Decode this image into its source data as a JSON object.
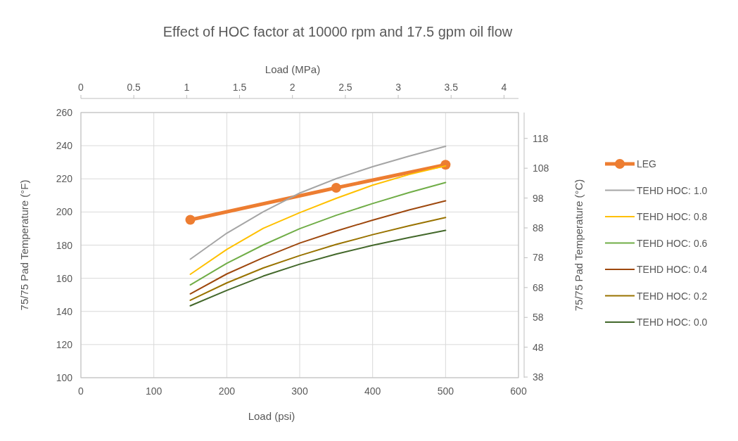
{
  "chart_data": {
    "type": "line",
    "title": "Effect of HOC factor at 10000 rpm and 17.5 gpm oil flow",
    "xlabel": "Load (psi)",
    "x2label": "Load (MPa)",
    "ylabel": "75/75 Pad Temperature (°F)",
    "y2label": "75/75 Pad Temperature (°C)",
    "xlim": [
      0,
      600
    ],
    "xticks": [
      0,
      100,
      200,
      300,
      400,
      500,
      600
    ],
    "x2lim": [
      0,
      4.137
    ],
    "x2ticks": [
      0,
      0.5,
      1,
      1.5,
      2,
      2.5,
      3,
      3.5,
      4
    ],
    "ylim": [
      100,
      260
    ],
    "yticks": [
      100,
      120,
      140,
      160,
      180,
      200,
      220,
      240,
      260
    ],
    "y2lim": [
      37.78,
      126.67
    ],
    "y2ticks": [
      38,
      48,
      58,
      68,
      78,
      88,
      98,
      108,
      118
    ],
    "grid": true,
    "legend": "right",
    "series": [
      {
        "name": "LEG",
        "color": "#ed7d31",
        "marker": "circle",
        "x": [
          150,
          350,
          500
        ],
        "values": [
          195.3,
          214.6,
          228.5
        ]
      },
      {
        "name": "TEHD HOC: 1.0",
        "color": "#a5a5a5",
        "marker": "none",
        "x": [
          150,
          200,
          250,
          300,
          350,
          400,
          450,
          500
        ],
        "values": [
          171.5,
          187.2,
          200.1,
          211.4,
          220.1,
          227.3,
          233.7,
          239.6
        ]
      },
      {
        "name": "TEHD HOC: 0.8",
        "color": "#ffc000",
        "marker": "none",
        "x": [
          150,
          200,
          250,
          300,
          350,
          400,
          450,
          500
        ],
        "values": [
          162.4,
          177.4,
          190.1,
          199.6,
          208.2,
          216.2,
          222.6,
          227.8
        ]
      },
      {
        "name": "TEHD HOC: 0.6",
        "color": "#70ad47",
        "marker": "none",
        "x": [
          150,
          200,
          250,
          300,
          350,
          400,
          450,
          500
        ],
        "values": [
          156.0,
          169.0,
          180.1,
          189.9,
          198.0,
          205.1,
          211.7,
          217.8
        ]
      },
      {
        "name": "TEHD HOC: 0.4",
        "color": "#9e480e",
        "marker": "none",
        "x": [
          150,
          200,
          250,
          300,
          350,
          400,
          450,
          500
        ],
        "values": [
          150.6,
          162.6,
          172.4,
          181.2,
          188.5,
          195.1,
          201.2,
          206.7
        ]
      },
      {
        "name": "TEHD HOC: 0.2",
        "color": "#997300",
        "marker": "none",
        "x": [
          150,
          200,
          250,
          300,
          350,
          400,
          450,
          500
        ],
        "values": [
          146.7,
          157.2,
          166.2,
          173.7,
          180.4,
          186.3,
          191.7,
          196.7
        ]
      },
      {
        "name": "TEHD HOC: 0.0",
        "color": "#43682b",
        "marker": "none",
        "x": [
          150,
          200,
          250,
          300,
          350,
          400,
          450,
          500
        ],
        "values": [
          143.4,
          152.7,
          161.3,
          168.5,
          174.6,
          179.9,
          184.6,
          188.9
        ]
      }
    ]
  }
}
